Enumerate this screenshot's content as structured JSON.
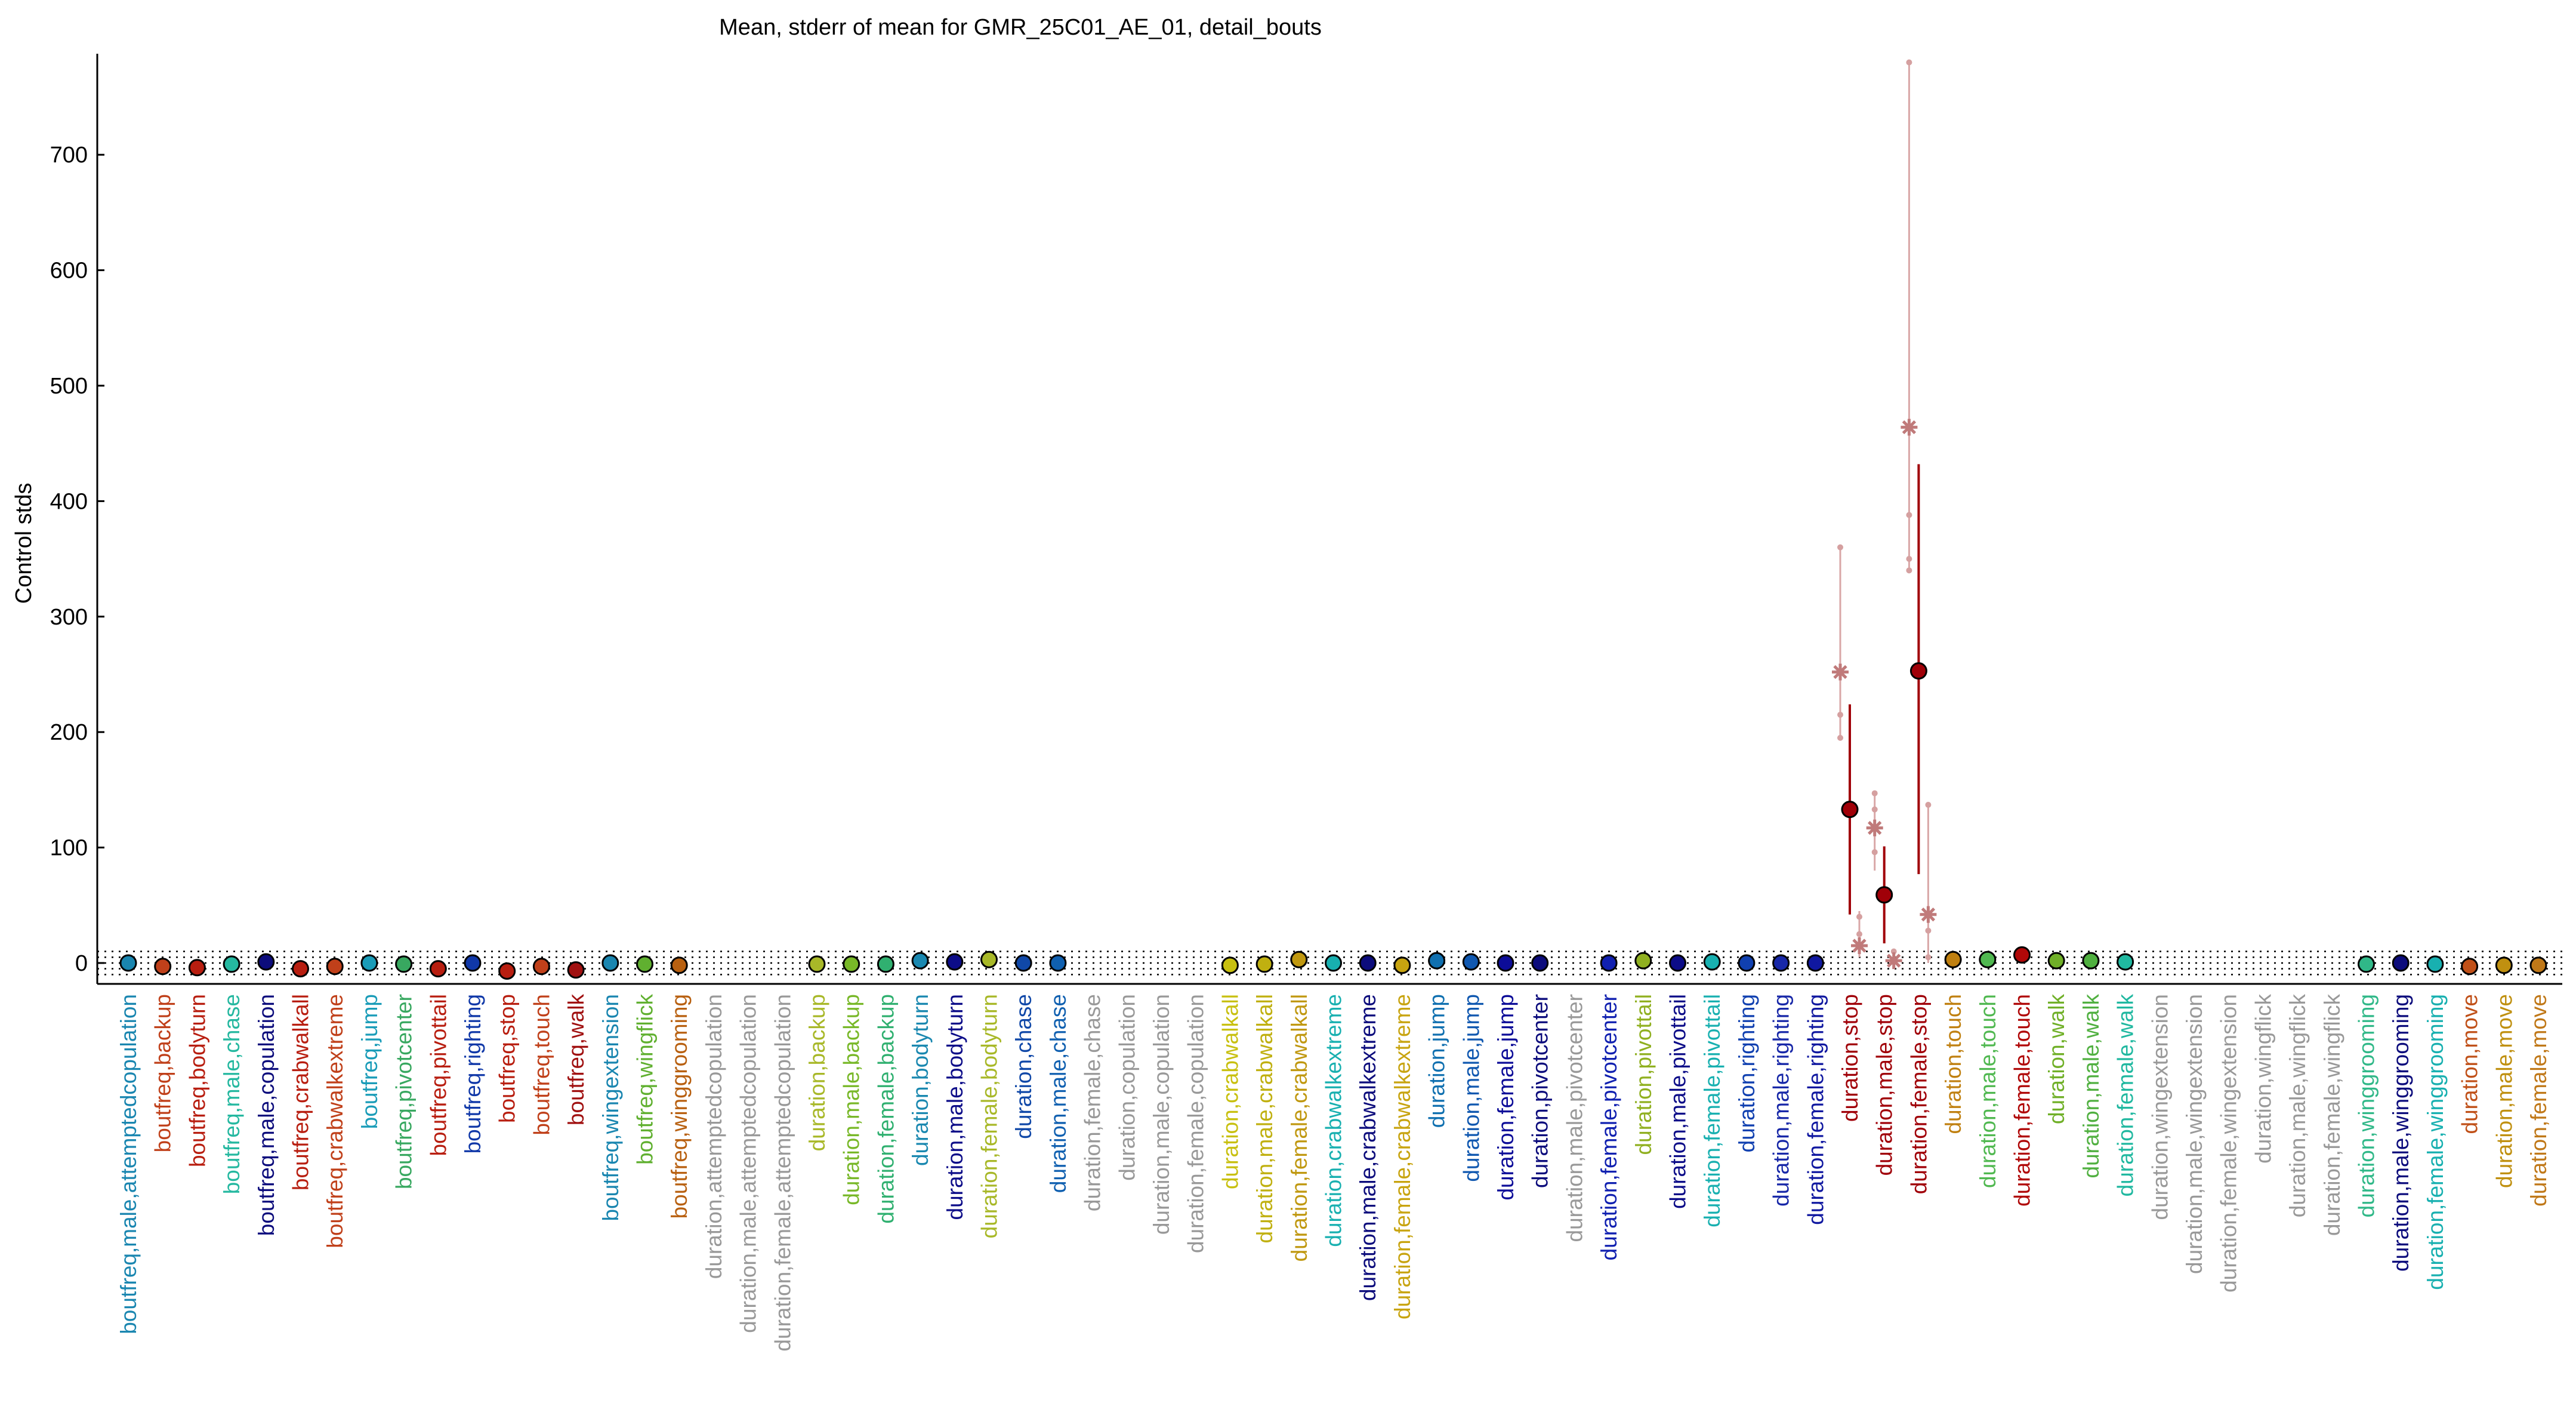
{
  "chart_data": {
    "type": "scatter",
    "title": "Mean, stderr of mean for GMR_25C01_AE_01, detail_bouts",
    "ylabel": "Control stds",
    "xlabel": "",
    "ylim": [
      -20,
      790
    ],
    "yticks": [
      0,
      100,
      200,
      300,
      400,
      500,
      600,
      700
    ],
    "ytick_labels": [
      "0",
      "100",
      "200",
      "300",
      "400",
      "500",
      "600",
      "700"
    ],
    "reference_lines": [
      -10,
      -5,
      0,
      5,
      10
    ],
    "grid": false,
    "legend": "none",
    "categories": [
      "boutfreq,male,attemptedcopulation",
      "boutfreq,backup",
      "boutfreq,bodyturn",
      "boutfreq,male,chase",
      "boutfreq,male,copulation",
      "boutfreq,crabwalkall",
      "boutfreq,crabwalkextreme",
      "boutfreq,jump",
      "boutfreq,pivotcenter",
      "boutfreq,pivottail",
      "boutfreq,righting",
      "boutfreq,stop",
      "boutfreq,touch",
      "boutfreq,walk",
      "boutfreq,wingextension",
      "boutfreq,wingflick",
      "boutfreq,winggrooming",
      "duration,attemptedcopulation",
      "duration,male,attemptedcopulation",
      "duration,female,attemptedcopulation",
      "duration,backup",
      "duration,male,backup",
      "duration,female,backup",
      "duration,bodyturn",
      "duration,male,bodyturn",
      "duration,female,bodyturn",
      "duration,chase",
      "duration,male,chase",
      "duration,female,chase",
      "duration,copulation",
      "duration,male,copulation",
      "duration,female,copulation",
      "duration,crabwalkall",
      "duration,male,crabwalkall",
      "duration,female,crabwalkall",
      "duration,crabwalkextreme",
      "duration,male,crabwalkextreme",
      "duration,female,crabwalkextreme",
      "duration,jump",
      "duration,male,jump",
      "duration,female,jump",
      "duration,pivotcenter",
      "duration,male,pivotcenter",
      "duration,female,pivotcenter",
      "duration,pivottail",
      "duration,male,pivottail",
      "duration,female,pivottail",
      "duration,righting",
      "duration,male,righting",
      "duration,female,righting",
      "duration,stop",
      "duration,male,stop",
      "duration,female,stop",
      "duration,touch",
      "duration,male,touch",
      "duration,female,touch",
      "duration,walk",
      "duration,male,walk",
      "duration,female,walk",
      "duration,wingextension",
      "duration,male,wingextension",
      "duration,female,wingextension",
      "duration,wingflick",
      "duration,male,wingflick",
      "duration,female,wingflick",
      "duration,winggrooming",
      "duration,male,winggrooming",
      "duration,female,winggrooming",
      "duration,move",
      "duration,male,move",
      "duration,female,move"
    ],
    "colors": [
      "#1a86b0",
      "#c0401a",
      "#b81e10",
      "#25b8a0",
      "#0c0c7c",
      "#b81e10",
      "#c0401a",
      "#1a9cb8",
      "#38a860",
      "#b81e10",
      "#1038a8",
      "#b81e10",
      "#c0401a",
      "#a01010",
      "#1a86b0",
      "#60b030",
      "#b86010",
      "#999999",
      "#999999",
      "#999999",
      "#a8b828",
      "#78b828",
      "#30b070",
      "#1a88b0",
      "#0c0c88",
      "#a8b828",
      "#1048a8",
      "#1060b0",
      "#999999",
      "#999999",
      "#999999",
      "#999999",
      "#c8c010",
      "#c0b010",
      "#c09810",
      "#18b0b0",
      "#0c0c7c",
      "#c8a410",
      "#1070b0",
      "#1058b0",
      "#0c0c98",
      "#0c0c7c",
      "#999999",
      "#1020b0",
      "#90b020",
      "#0c0c88",
      "#18b0b0",
      "#1040b0",
      "#1828a8",
      "#1018a0",
      "#a00008",
      "#a00008",
      "#a00008",
      "#c08010",
      "#50b850",
      "#b00808",
      "#70b028",
      "#50b040",
      "#20b8a0",
      "#999999",
      "#999999",
      "#999999",
      "#999999",
      "#999999",
      "#999999",
      "#30b888",
      "#0c0c7c",
      "#18b0b0",
      "#c05018",
      "#c09010",
      "#c07818",
      "#999999"
    ],
    "series": [
      {
        "name": "",
        "values": [
          0,
          -3,
          -4,
          -1,
          1,
          -5,
          -3,
          0,
          -1,
          -5,
          0,
          -7,
          -3,
          -6,
          0,
          -1,
          -2,
          null,
          null,
          null,
          -1,
          -1,
          -1,
          2,
          1,
          3,
          0,
          0,
          null,
          null,
          null,
          null,
          -2,
          -1,
          3,
          0,
          0,
          -2,
          2,
          1,
          0,
          0,
          null,
          0,
          2,
          0,
          1,
          0,
          0,
          0,
          133,
          59,
          253,
          3,
          3,
          7,
          2,
          2,
          1,
          null,
          null,
          null,
          null,
          null,
          null,
          -1,
          0,
          -1,
          -3,
          -2,
          -2
        ],
        "stderr_low": [
          null,
          null,
          null,
          null,
          null,
          null,
          null,
          null,
          null,
          null,
          null,
          null,
          null,
          null,
          null,
          null,
          null,
          null,
          null,
          null,
          null,
          null,
          null,
          null,
          null,
          null,
          null,
          null,
          null,
          null,
          null,
          null,
          null,
          null,
          null,
          null,
          null,
          null,
          null,
          null,
          null,
          null,
          null,
          null,
          null,
          null,
          null,
          null,
          null,
          null,
          42,
          17,
          77,
          null,
          null,
          null,
          null,
          null,
          null,
          null,
          null,
          null,
          null,
          null,
          null,
          null,
          null,
          null,
          null,
          null,
          null
        ],
        "stderr_high": [
          null,
          null,
          null,
          null,
          null,
          null,
          null,
          null,
          null,
          null,
          null,
          null,
          null,
          null,
          null,
          null,
          null,
          null,
          null,
          null,
          null,
          null,
          null,
          null,
          null,
          null,
          null,
          null,
          null,
          null,
          null,
          null,
          null,
          null,
          null,
          null,
          null,
          null,
          null,
          null,
          null,
          null,
          null,
          null,
          null,
          null,
          null,
          null,
          null,
          null,
          224,
          101,
          432,
          null,
          null,
          null,
          null,
          null,
          null,
          null,
          null,
          null,
          null,
          null,
          null,
          null,
          null,
          null,
          null,
          null,
          null
        ]
      }
    ],
    "replicates": [
      {
        "category": "duration,stop",
        "side": "left",
        "star": 252,
        "dots": [
          360,
          215,
          195
        ],
        "range": [
          195,
          360
        ]
      },
      {
        "category": "duration,stop",
        "side": "right",
        "star": 15,
        "dots": [
          40,
          25
        ],
        "range": [
          5,
          45
        ]
      },
      {
        "category": "duration,male,stop",
        "side": "left",
        "star": 117,
        "dots": [
          147,
          133,
          96
        ],
        "range": [
          80,
          148
        ]
      },
      {
        "category": "duration,male,stop",
        "side": "right",
        "star": 2,
        "dots": [
          10
        ],
        "range": [
          0,
          10
        ]
      },
      {
        "category": "duration,female,stop",
        "side": "left",
        "star": 464,
        "dots": [
          780,
          388,
          350,
          340
        ],
        "range": [
          340,
          780
        ]
      },
      {
        "category": "duration,female,stop",
        "side": "right",
        "star": 42,
        "dots": [
          137,
          28,
          5
        ],
        "range": [
          0,
          137
        ]
      }
    ]
  }
}
